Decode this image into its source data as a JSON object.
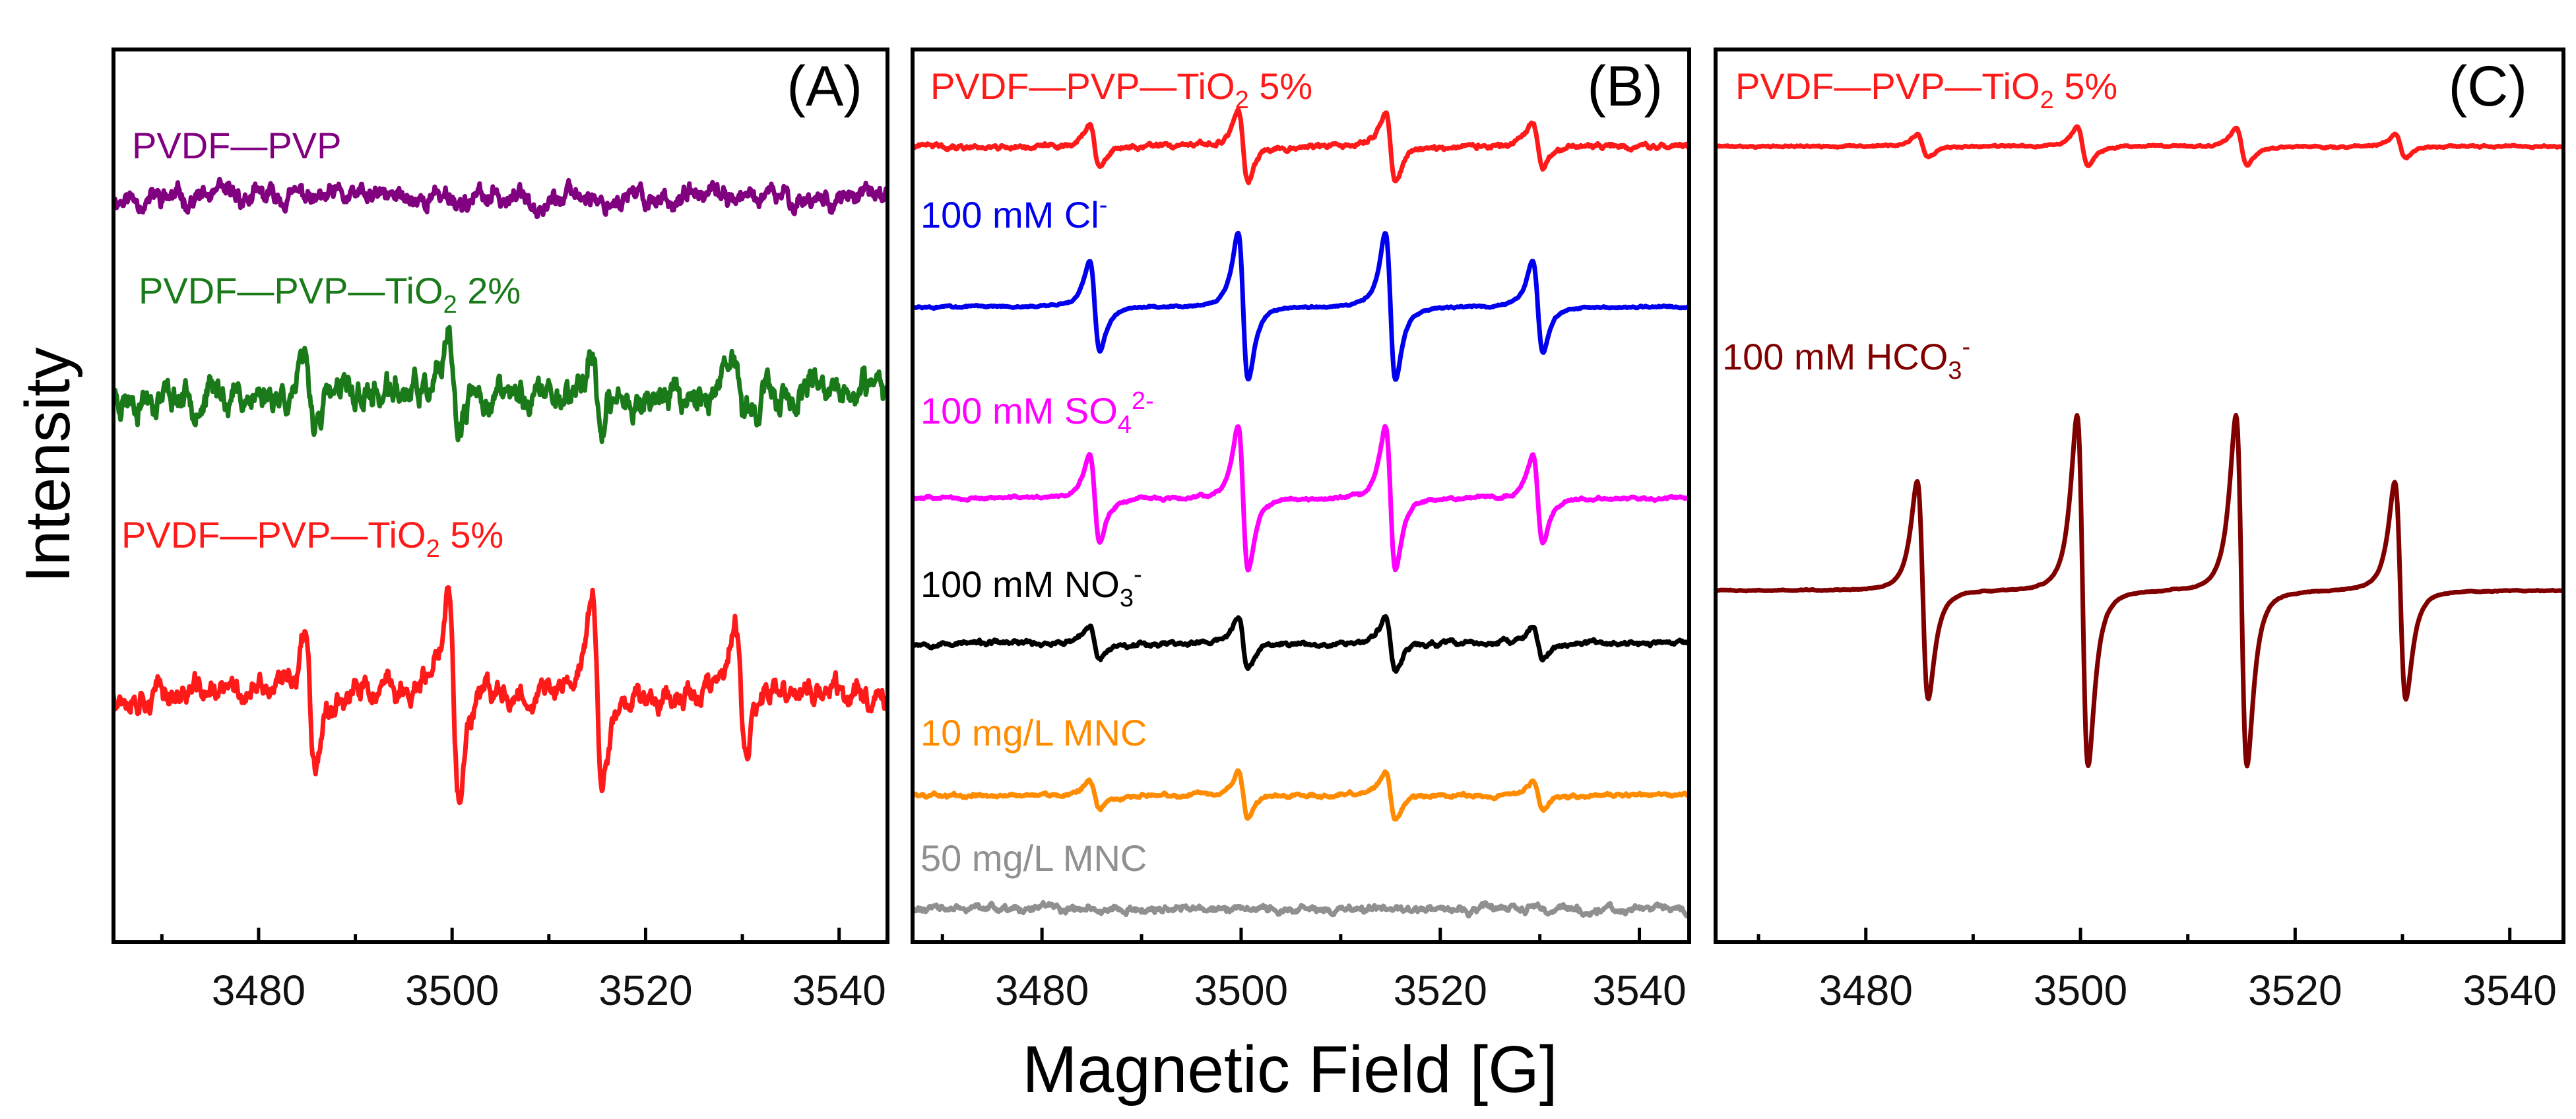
{
  "figure": {
    "ylabel": "Intensity",
    "xlabel": "Magnetic Field [G]"
  },
  "chart_data": [
    {
      "type": "line",
      "panel": "(A)",
      "xlim": [
        3465,
        3545
      ],
      "xticks": [
        3480,
        3500,
        3520,
        3540
      ],
      "ylabel": "Intensity",
      "xlabel": "Magnetic Field [G]",
      "yticks": "none",
      "peak_centers": [
        3485.3,
        3500.2,
        3515.0,
        3529.8
      ],
      "series": [
        {
          "name": "PVDF—PVP",
          "label_parts": [
            "PVDF",
            "—",
            "PVP"
          ],
          "color": "#800080",
          "amplitude": 0.12,
          "noise": 0.22,
          "seed": 11
        },
        {
          "name": "PVDF—PVP—TiO2 2%",
          "label_parts": [
            "PVDF",
            "—",
            "PVP",
            "—",
            "TiO",
            "2",
            " 2%"
          ],
          "color": "#1a7a1a",
          "amplitude": 1.0,
          "noise": 0.35,
          "seed": 23
        },
        {
          "name": "PVDF—PVP—TiO2 5%",
          "label_parts": [
            "PVDF",
            "—",
            "PVP",
            "—",
            "TiO",
            "2",
            " 5%"
          ],
          "color": "#ff1a1a",
          "amplitude": 2.45,
          "noise": 0.28,
          "seed": 37
        }
      ]
    },
    {
      "type": "line",
      "panel": "(B)",
      "xlim": [
        3467,
        3545
      ],
      "xticks": [
        3480,
        3500,
        3520,
        3540
      ],
      "xlabel": "Magnetic Field [G]",
      "yticks": "none",
      "peak_centers": [
        3485.3,
        3500.2,
        3515.0,
        3529.8
      ],
      "series": [
        {
          "name": "PVDF—PVP—TiO2 5%",
          "label_parts": [
            "PVDF",
            "—",
            "PVP",
            "—",
            "TiO",
            "2",
            " 5%"
          ],
          "color": "#ff1a1a",
          "amplitude": 0.85,
          "noise": 0.05,
          "seed": 41
        },
        {
          "name": "100 mM Cl-",
          "label_parts": [
            "100 mM Cl",
            "-"
          ],
          "color": "#0000ee",
          "amplitude": 1.75,
          "noise": 0.02,
          "seed": 43
        },
        {
          "name": "100 mM SO4 2-",
          "label_parts": [
            "100 mM SO",
            "4",
            "2-"
          ],
          "color": "#ff00ff",
          "amplitude": 1.7,
          "noise": 0.03,
          "seed": 47
        },
        {
          "name": "100 mM NO3-",
          "label_parts": [
            "100 mM NO",
            "3",
            "-"
          ],
          "color": "#000000",
          "amplitude": 0.6,
          "noise": 0.05,
          "seed": 53
        },
        {
          "name": "10 mg/L MNC",
          "label_parts": [
            "10 mg/L MNC"
          ],
          "color": "#ff8c00",
          "amplitude": 0.55,
          "noise": 0.04,
          "seed": 59
        },
        {
          "name": "50 mg/L MNC",
          "label_parts": [
            "50 mg/L MNC"
          ],
          "color": "#909090",
          "amplitude": 0.03,
          "noise": 0.08,
          "seed": 61
        }
      ]
    },
    {
      "type": "line",
      "panel": "(C)",
      "xlim": [
        3466,
        3545
      ],
      "xticks": [
        3480,
        3500,
        3520,
        3540
      ],
      "xlabel": "Magnetic Field [G]",
      "yticks": "none",
      "peak_centers": [
        3485.3,
        3500.2,
        3515.0,
        3529.8
      ],
      "series": [
        {
          "name": "PVDF—PVP—TiO2 5%",
          "label_parts": [
            "PVDF",
            "—",
            "PVP",
            "—",
            "TiO",
            "2",
            " 5%"
          ],
          "color": "#ff1a1a",
          "amplitude": 0.45,
          "noise": 0.02,
          "seed": 71
        },
        {
          "name": "100 mM HCO3-",
          "label_parts": [
            "100 mM HCO",
            "3",
            "-"
          ],
          "color": "#800000",
          "amplitude": 4.2,
          "noise": 0.01,
          "seed": 73
        }
      ]
    }
  ]
}
